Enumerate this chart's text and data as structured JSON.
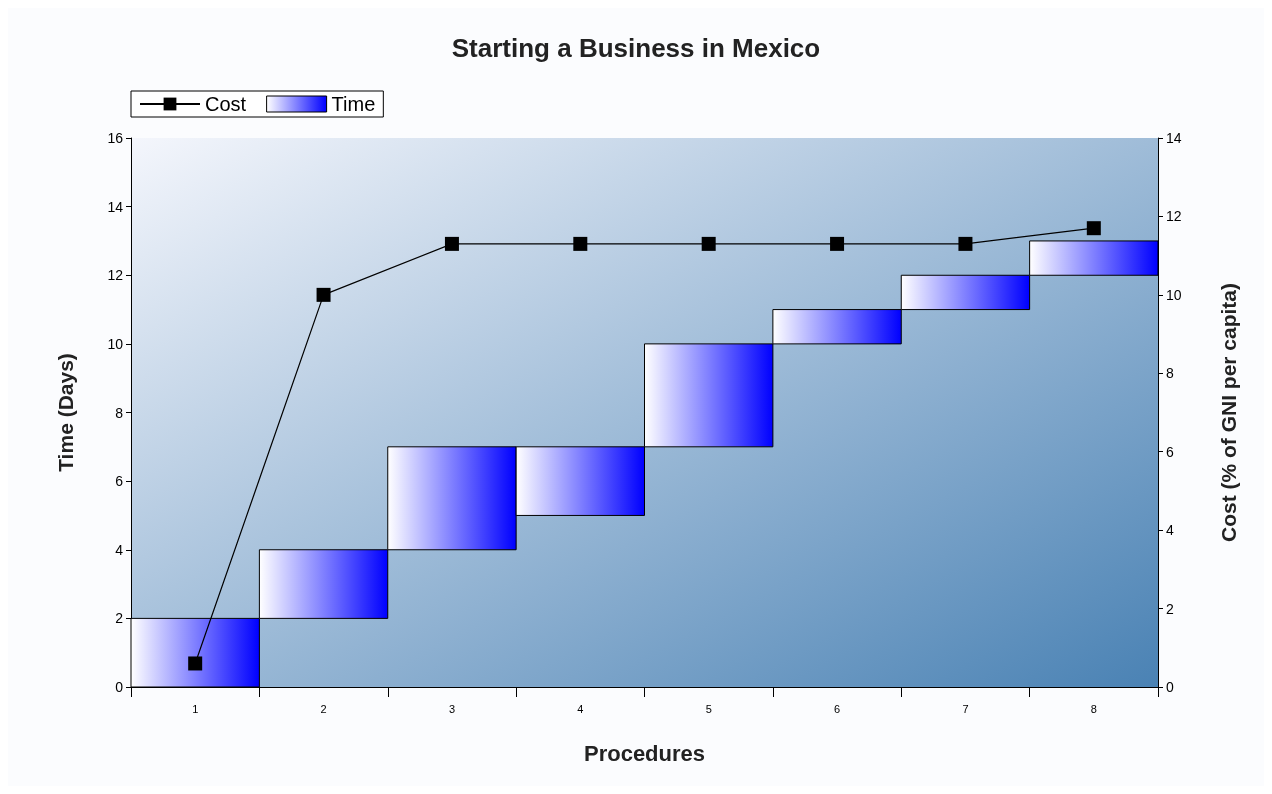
{
  "chart_data": {
    "type": "bar",
    "title": "Starting a Business in Mexico",
    "xlabel": "Procedures",
    "ylabel": "Time (Days)",
    "y2label": "Cost (% of GNI per capita)",
    "categories": [
      "1",
      "2",
      "3",
      "4",
      "5",
      "6",
      "7",
      "8"
    ],
    "series": [
      {
        "name": "Cost",
        "type": "line",
        "axis": "y2",
        "color": "#000000",
        "marker": "square",
        "values": [
          0.6,
          10.0,
          11.3,
          11.3,
          11.3,
          11.3,
          11.3,
          11.7
        ]
      },
      {
        "name": "Time",
        "color": "#0000ff",
        "base": [
          0,
          2,
          4,
          5,
          7,
          10,
          11,
          12
        ],
        "values": [
          2,
          2,
          3,
          2,
          3,
          1,
          1,
          1
        ]
      }
    ],
    "ylim": [
      0,
      16
    ],
    "yticks": [
      0,
      2,
      4,
      6,
      8,
      10,
      12,
      14,
      16
    ],
    "y2lim": [
      0,
      14
    ],
    "y2ticks": [
      0,
      2,
      4,
      6,
      8,
      10,
      12,
      14
    ],
    "grid": false,
    "legend": "top left"
  }
}
